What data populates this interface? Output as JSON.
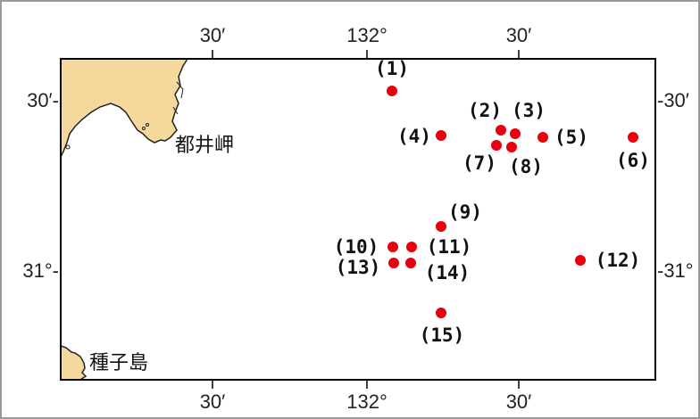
{
  "map": {
    "colors": {
      "land": "#f5d99c",
      "coast": "#222222",
      "point": "#e8000d",
      "frame": "#000000",
      "window_border": "#999999"
    },
    "top_ticks": [
      "30′",
      "132°",
      "30′"
    ],
    "bottom_ticks": [
      "30′",
      "132°",
      "30′"
    ],
    "left_ticks": [
      "30′-",
      "31°-"
    ],
    "right_ticks": [
      "-30′",
      "-31°"
    ],
    "place_names": {
      "cape": "都井岬",
      "island": "種子島"
    },
    "points": [
      {
        "id": "1",
        "label": "(1)"
      },
      {
        "id": "2",
        "label": "(2)"
      },
      {
        "id": "3",
        "label": "(3)"
      },
      {
        "id": "4",
        "label": "(4)"
      },
      {
        "id": "5",
        "label": "(5)"
      },
      {
        "id": "6",
        "label": "(6)"
      },
      {
        "id": "7",
        "label": "(7)"
      },
      {
        "id": "8",
        "label": "(8)"
      },
      {
        "id": "9",
        "label": "(9)"
      },
      {
        "id": "10",
        "label": "(10)"
      },
      {
        "id": "11",
        "label": "(11)"
      },
      {
        "id": "12",
        "label": "(12)"
      },
      {
        "id": "13",
        "label": "(13)"
      },
      {
        "id": "14",
        "label": "(14)"
      },
      {
        "id": "15",
        "label": "(15)"
      }
    ]
  }
}
